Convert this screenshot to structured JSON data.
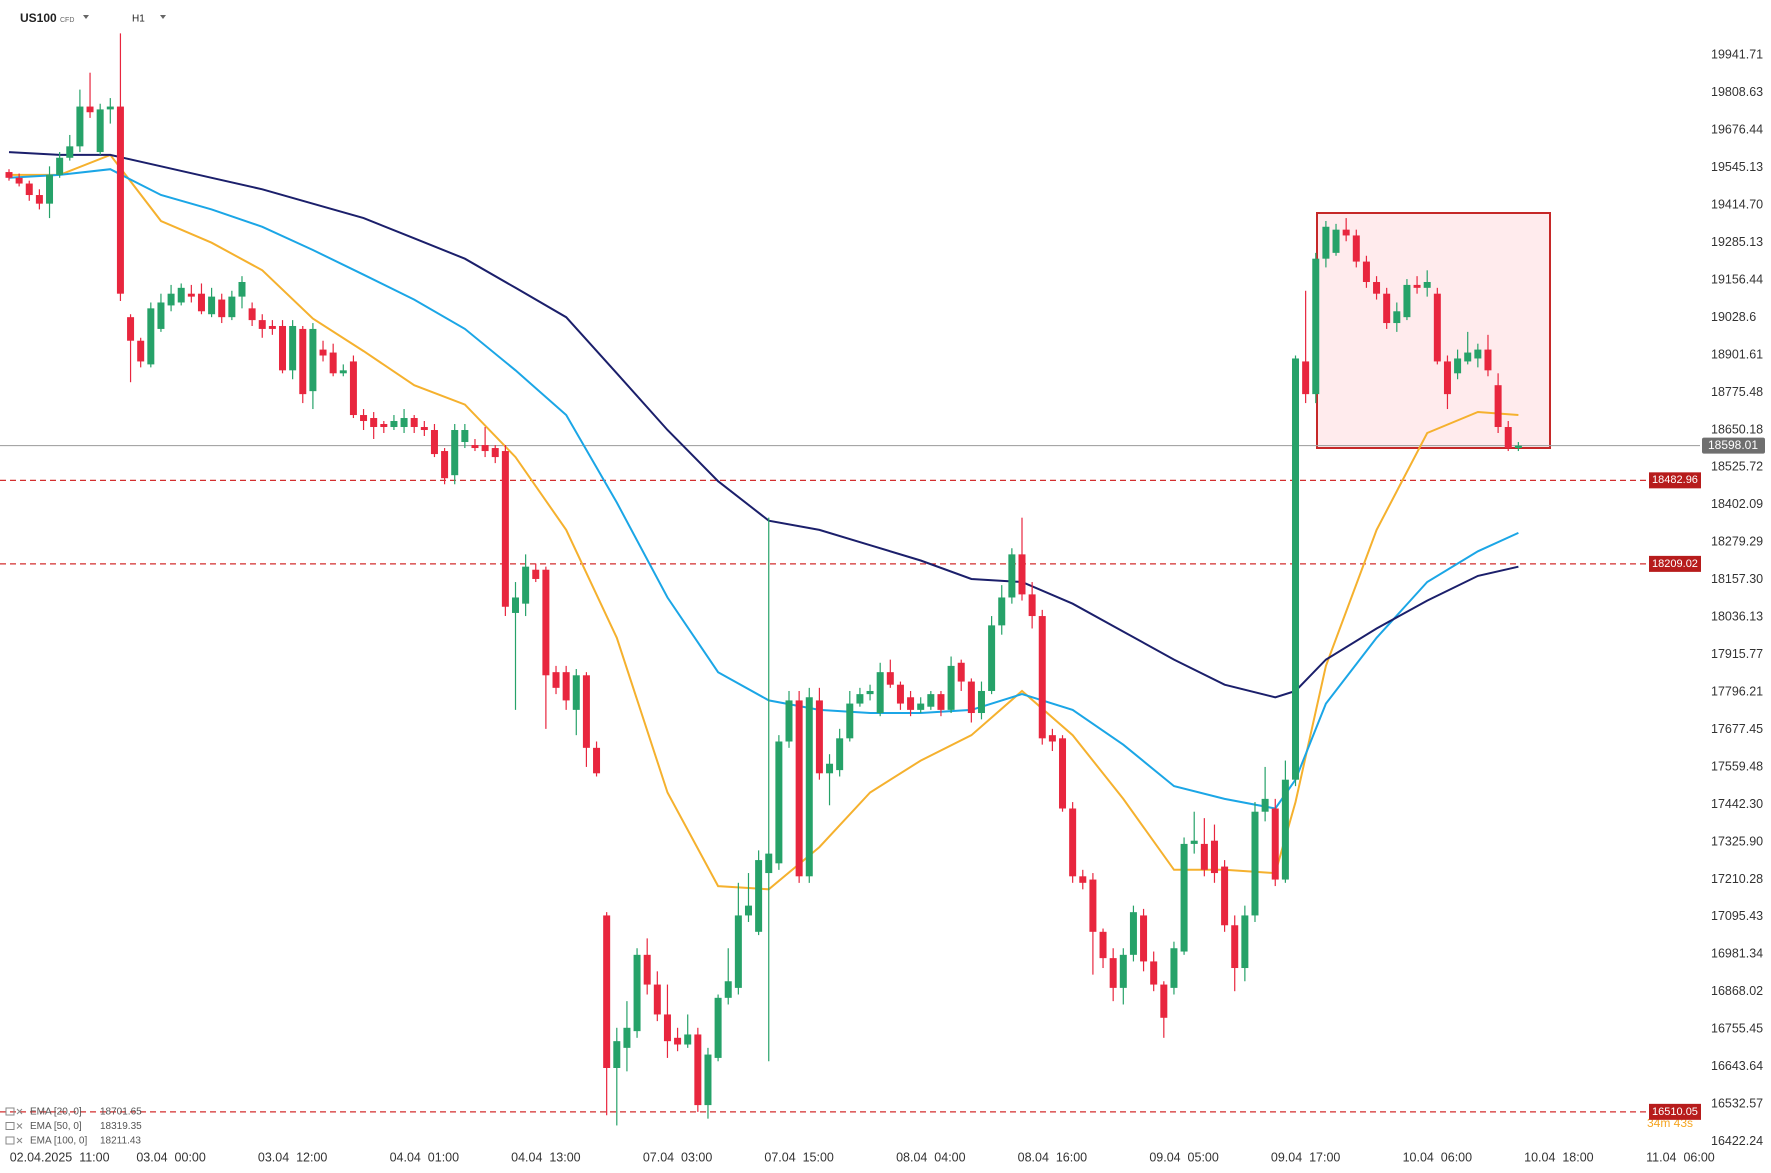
{
  "header": {
    "symbol": "US100",
    "instrument": "CFD",
    "timeframe": "H1"
  },
  "chart_data": {
    "type": "candlestick",
    "categories": [
      null,
      null,
      null,
      null,
      null,
      "02.04.2025  11:00",
      null,
      null,
      null,
      null,
      null,
      null,
      null,
      null,
      null,
      null,
      "03.04  00:00",
      null,
      null,
      null,
      null,
      null,
      null,
      null,
      null,
      null,
      null,
      null,
      "03.04  12:00",
      null,
      null,
      null,
      null,
      null,
      null,
      null,
      null,
      null,
      null,
      null,
      null,
      "04.04  01:00",
      null,
      null,
      null,
      null,
      null,
      null,
      null,
      null,
      null,
      null,
      null,
      "04.04  13:00",
      null,
      null,
      null,
      null,
      null,
      null,
      null,
      null,
      null,
      null,
      null,
      null,
      "07.04  03:00",
      null,
      null,
      null,
      null,
      null,
      null,
      null,
      null,
      null,
      null,
      null,
      "07.04  15:00",
      null,
      null,
      null,
      null,
      null,
      null,
      null,
      null,
      null,
      null,
      null,
      null,
      "08.04  04:00",
      null,
      null,
      null,
      null,
      null,
      null,
      null,
      null,
      null,
      null,
      null,
      "08.04  16:00",
      null,
      null,
      null,
      null,
      null,
      null,
      null,
      null,
      null,
      null,
      null,
      null,
      "09.04  05:00",
      null,
      null,
      null,
      null,
      null,
      null,
      null,
      null,
      null,
      null,
      null,
      "09.04  17:00",
      null,
      null,
      null,
      null,
      null,
      null,
      null,
      null,
      null,
      null,
      null,
      null,
      "10.04  06:00",
      null,
      null,
      null,
      null,
      null,
      null,
      null,
      null,
      null,
      null,
      null,
      "10.04  18:00",
      null,
      null,
      null,
      null,
      null,
      null,
      null,
      null,
      null,
      null,
      null,
      "11.04  06:00",
      null
    ],
    "open": [
      19530,
      19510,
      19490,
      19450,
      19420,
      19520,
      19580,
      19620,
      19760,
      19600,
      19750,
      19760,
      19030,
      18950,
      18870,
      18990,
      19070,
      19080,
      19110,
      19110,
      19040,
      19090,
      19030,
      19100,
      19060,
      19020,
      19000,
      19000,
      18850,
      18990,
      18780,
      18920,
      18910,
      18840,
      18880,
      18700,
      18690,
      18670,
      18660,
      18660,
      18690,
      18660,
      18650,
      18580,
      18500,
      18610,
      18600,
      18600,
      18590,
      18580,
      18050,
      18080,
      18190,
      18190,
      17860,
      17860,
      17740,
      17850,
      17620,
      17100,
      16640,
      16700,
      16750,
      16980,
      16890,
      16800,
      16730,
      16710,
      16740,
      16530,
      16670,
      16850,
      16880,
      17100,
      17050,
      17230,
      17260,
      17640,
      17770,
      17220,
      17770,
      17540,
      17550,
      17650,
      17760,
      17790,
      17730,
      17860,
      17820,
      17780,
      17740,
      17750,
      17790,
      17740,
      17890,
      17830,
      17730,
      17800,
      18010,
      18100,
      18240,
      18110,
      18040,
      17660,
      17650,
      17430,
      17220,
      17210,
      17050,
      16970,
      16880,
      16980,
      17100,
      16960,
      16890,
      16880,
      16990,
      17320,
      17320,
      17330,
      17250,
      17070,
      16940,
      17100,
      17420,
      17430,
      17210,
      17520,
      18880,
      18770,
      19230,
      19250,
      19330,
      19310,
      19220,
      19150,
      19110,
      19010,
      19030,
      19140,
      19130,
      19110,
      18880,
      18840,
      18880,
      18890,
      18920,
      18800,
      18660,
      18590,
      null,
      null,
      null,
      null,
      null,
      null,
      null,
      null,
      null,
      null,
      null,
      null,
      null,
      null,
      null,
      null,
      null
    ],
    "high": [
      19540,
      19525,
      19500,
      19470,
      19550,
      19600,
      19660,
      19820,
      19880,
      19770,
      19790,
      20020,
      19040,
      18960,
      19080,
      19110,
      19140,
      19145,
      19140,
      19145,
      19130,
      19110,
      19120,
      19170,
      19080,
      19040,
      19020,
      19020,
      19020,
      19000,
      19010,
      18950,
      18940,
      18870,
      18900,
      18720,
      18710,
      18680,
      18700,
      18720,
      18700,
      18680,
      18670,
      18590,
      18670,
      18670,
      18620,
      18660,
      18600,
      18600,
      18150,
      18240,
      18210,
      18200,
      17880,
      17880,
      17870,
      17860,
      17640,
      17110,
      16760,
      16840,
      17000,
      17030,
      16930,
      16890,
      16760,
      16800,
      16760,
      16700,
      16860,
      17000,
      17200,
      17230,
      17300,
      18360,
      17660,
      17800,
      17800,
      17810,
      17810,
      17600,
      17680,
      17800,
      17810,
      17820,
      17890,
      17900,
      17830,
      17800,
      17780,
      17800,
      17800,
      17910,
      17900,
      17840,
      17830,
      18040,
      18140,
      18260,
      18360,
      18150,
      18060,
      17680,
      17660,
      17450,
      17240,
      17230,
      17060,
      17000,
      17000,
      17130,
      17120,
      16990,
      16900,
      17020,
      17340,
      17420,
      17400,
      17380,
      17270,
      17100,
      17130,
      17450,
      17560,
      17460,
      17580,
      18900,
      19120,
      19250,
      19360,
      19350,
      19370,
      19330,
      19240,
      19170,
      19130,
      19080,
      19160,
      19170,
      19190,
      19130,
      18900,
      18920,
      18980,
      18940,
      18970,
      18840,
      18680,
      18610,
      null,
      null,
      null,
      null,
      null,
      null,
      null,
      null,
      null,
      null,
      null,
      null,
      null,
      null,
      null,
      null,
      null
    ],
    "low": [
      19500,
      19480,
      19430,
      19400,
      19370,
      19510,
      19570,
      19600,
      19720,
      19590,
      19700,
      19085,
      18810,
      18860,
      18860,
      18980,
      19050,
      19070,
      19080,
      19040,
      19030,
      19010,
      19020,
      19060,
      19000,
      18960,
      18970,
      18840,
      18820,
      18740,
      18720,
      18880,
      18830,
      18830,
      18690,
      18650,
      18620,
      18640,
      18650,
      18640,
      18640,
      18630,
      18560,
      18470,
      18470,
      18590,
      18580,
      18560,
      18540,
      18040,
      17740,
      18040,
      18150,
      17680,
      17790,
      17740,
      17660,
      17560,
      17530,
      16500,
      16470,
      16630,
      16730,
      16860,
      16780,
      16670,
      16690,
      16700,
      16510,
      16490,
      16660,
      16830,
      16860,
      17080,
      17040,
      16660,
      17240,
      17620,
      17200,
      17200,
      17520,
      17440,
      17530,
      17640,
      17750,
      17770,
      17720,
      17810,
      17740,
      17720,
      17730,
      17740,
      17720,
      17730,
      17800,
      17700,
      17710,
      17790,
      17980,
      18080,
      18090,
      18000,
      17630,
      17610,
      17420,
      17200,
      17180,
      16920,
      16940,
      16840,
      16830,
      16960,
      16930,
      16870,
      16730,
      16860,
      16980,
      17290,
      17220,
      17200,
      17050,
      16870,
      16900,
      17080,
      17390,
      17190,
      17200,
      17500,
      18740,
      18740,
      19200,
      19240,
      19290,
      19200,
      19130,
      19090,
      18990,
      18980,
      19020,
      19110,
      19100,
      18870,
      18720,
      18820,
      18870,
      18860,
      18830,
      18640,
      18580,
      18580,
      null,
      null,
      null,
      null,
      null,
      null,
      null,
      null,
      null,
      null,
      null,
      null,
      null,
      null,
      null,
      null,
      null
    ],
    "close": [
      19510,
      19490,
      19450,
      19420,
      19520,
      19580,
      19620,
      19760,
      19740,
      19750,
      19760,
      19110,
      18950,
      18880,
      19060,
      19080,
      19110,
      19130,
      19100,
      19050,
      19100,
      19030,
      19100,
      19150,
      19020,
      18990,
      18990,
      18850,
      19000,
      18770,
      18990,
      18900,
      18840,
      18850,
      18700,
      18680,
      18660,
      18660,
      18680,
      18690,
      18660,
      18650,
      18570,
      18490,
      18650,
      18650,
      18590,
      18580,
      18560,
      18070,
      18100,
      18200,
      18160,
      17850,
      17810,
      17770,
      17850,
      17620,
      17540,
      16640,
      16720,
      16760,
      16980,
      16890,
      16800,
      16720,
      16710,
      16740,
      16530,
      16680,
      16850,
      16900,
      17100,
      17130,
      17270,
      17290,
      17640,
      17770,
      17220,
      17780,
      17540,
      17570,
      17650,
      17760,
      17790,
      17800,
      17860,
      17820,
      17760,
      17740,
      17760,
      17790,
      17740,
      17880,
      17830,
      17730,
      17800,
      18010,
      18100,
      18240,
      18110,
      18040,
      17650,
      17640,
      17430,
      17220,
      17200,
      17050,
      16970,
      16880,
      16980,
      17110,
      16960,
      16890,
      16790,
      17000,
      17320,
      17330,
      17240,
      17230,
      17070,
      16940,
      17100,
      17420,
      17460,
      17210,
      17520,
      18890,
      18770,
      19230,
      19340,
      19330,
      19310,
      19220,
      19150,
      19110,
      19010,
      19050,
      19140,
      19130,
      19150,
      18880,
      18770,
      18890,
      18910,
      18920,
      18850,
      18660,
      18590,
      18598.01,
      null,
      null,
      null,
      null,
      null,
      null,
      null,
      null,
      null,
      null,
      null,
      null,
      null,
      null,
      null,
      null,
      null
    ],
    "up_color": "#26a269",
    "down_color": "#e8263e",
    "log_scale": true,
    "ylim": [
      16392,
      20140
    ],
    "yticks": [
      19941.71,
      19808.63,
      19676.44,
      19545.13,
      {
        "value": 19414.7,
        "label": "19414.70"
      },
      19285.13,
      19156.44,
      19028.6,
      18901.61,
      18775.48,
      18650.18,
      18525.72,
      18402.09,
      18279.29,
      {
        "value": 18157.3,
        "label": "18157.30"
      },
      18036.13,
      17915.77,
      17796.21,
      17677.45,
      17559.48,
      {
        "value": 17442.3,
        "label": "17442.30"
      },
      {
        "value": 17325.9,
        "label": "17325.90"
      },
      17210.28,
      17095.43,
      16981.34,
      16868.02,
      16755.45,
      16643.64,
      16532.57,
      16422.24
    ],
    "overlays": [
      {
        "name": "EMA [20, 0]",
        "last_value": 18701.65,
        "color": "#f5b12e",
        "x": [
          0,
          5,
          10,
          15,
          20,
          25,
          30,
          35,
          40,
          45,
          50,
          55,
          60,
          65,
          70,
          75,
          80,
          85,
          90,
          95,
          100,
          105,
          110,
          115,
          120,
          125,
          127,
          130,
          135,
          140,
          145,
          149
        ],
        "values": [
          19520,
          19520,
          19590,
          19360,
          19285,
          19190,
          19025,
          18915,
          18800,
          18735,
          18560,
          18320,
          17970,
          17480,
          17190,
          17180,
          17310,
          17480,
          17580,
          17660,
          17800,
          17660,
          17460,
          17240,
          17240,
          17230,
          17450,
          17880,
          18320,
          18640,
          18710,
          18700
        ]
      },
      {
        "name": "EMA [50, 0]",
        "last_value": 18319.35,
        "color": "#1ba6e6",
        "x": [
          0,
          5,
          10,
          15,
          20,
          25,
          30,
          35,
          40,
          45,
          50,
          55,
          60,
          65,
          70,
          75,
          80,
          85,
          90,
          95,
          100,
          105,
          110,
          115,
          120,
          125,
          127,
          130,
          135,
          140,
          145,
          149
        ],
        "values": [
          19510,
          19520,
          19540,
          19450,
          19400,
          19340,
          19260,
          19175,
          19090,
          18990,
          18850,
          18700,
          18410,
          18100,
          17860,
          17770,
          17740,
          17730,
          17730,
          17740,
          17790,
          17740,
          17630,
          17500,
          17460,
          17430,
          17520,
          17760,
          17970,
          18150,
          18250,
          18310
        ]
      },
      {
        "name": "EMA [100, 0]",
        "last_value": 18211.43,
        "color": "#1b1f6b",
        "x": [
          0,
          5,
          10,
          15,
          20,
          25,
          30,
          35,
          40,
          45,
          50,
          55,
          60,
          65,
          70,
          75,
          80,
          85,
          90,
          95,
          100,
          105,
          110,
          115,
          120,
          125,
          127,
          130,
          135,
          140,
          145,
          149
        ],
        "values": [
          19600,
          19590,
          19590,
          19550,
          19510,
          19470,
          19420,
          19370,
          19300,
          19230,
          19130,
          19030,
          18840,
          18650,
          18480,
          18350,
          18320,
          18270,
          18220,
          18160,
          18150,
          18080,
          17990,
          17900,
          17820,
          17780,
          17800,
          17900,
          18000,
          18090,
          18170,
          18200
        ]
      }
    ],
    "current_price": 18598.01,
    "levels": [
      18482.96,
      18209.02,
      16510.05
    ],
    "level_color": "#d32f2f",
    "timer": "34m 43s"
  }
}
